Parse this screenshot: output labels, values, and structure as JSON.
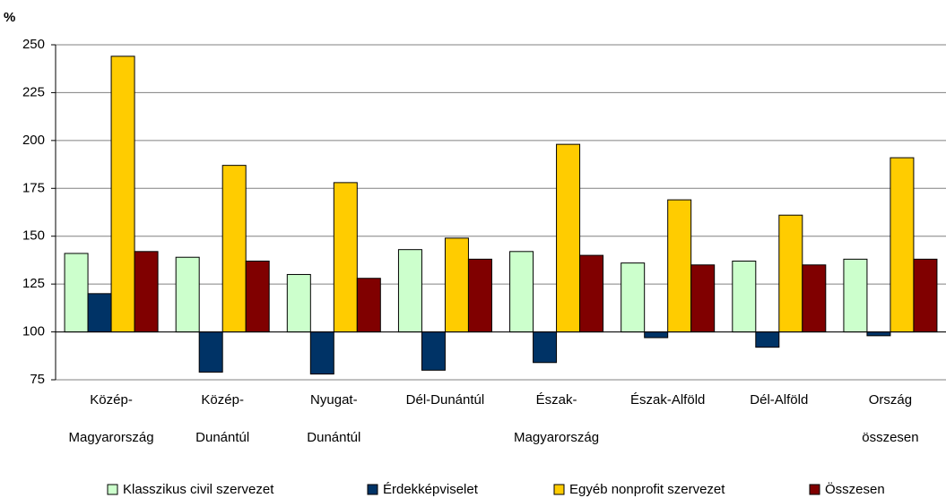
{
  "chart_data": {
    "type": "bar",
    "y_label": "%",
    "categories": [
      "Közép-\nMagyarország",
      "Közép-\nDunántúl",
      "Nyugat-\nDunántúl",
      "Dél-Dunántúl",
      "Észak-\nMagyarország",
      "Észak-Alföld",
      "Dél-Alföld",
      "Ország\nösszesen"
    ],
    "series": [
      {
        "name": "Klasszikus civil szervezet",
        "color": "#ccffcc",
        "values": [
          141,
          139,
          130,
          143,
          142,
          136,
          137,
          138
        ]
      },
      {
        "name": "Érdekképviselet",
        "color": "#003366",
        "values": [
          120,
          79,
          78,
          80,
          84,
          97,
          92,
          98
        ]
      },
      {
        "name": "Egyéb nonprofit szervezet",
        "color": "#ffcc00",
        "values": [
          244,
          187,
          178,
          149,
          198,
          169,
          161,
          191
        ]
      },
      {
        "name": "Összesen",
        "color": "#800000",
        "values": [
          142,
          137,
          128,
          138,
          140,
          135,
          135,
          138
        ]
      }
    ],
    "baseline": 100,
    "ylim": [
      75,
      250
    ],
    "yticks": [
      75,
      100,
      125,
      150,
      175,
      200,
      225,
      250
    ],
    "grid": true,
    "legend": "bottom"
  }
}
